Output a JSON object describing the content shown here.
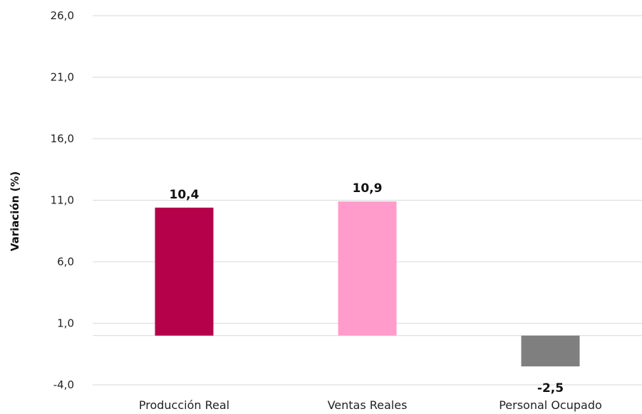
{
  "chart_data": {
    "type": "bar",
    "ylabel": "Variación (%)",
    "categories": [
      "Producción Real",
      "Ventas Reales",
      "Personal Ocupado"
    ],
    "values": [
      10.4,
      10.9,
      -2.5
    ],
    "value_labels": [
      "10,4",
      "10,9",
      "-2,5"
    ],
    "bar_colors": [
      "#b5004a",
      "#ff9ccc",
      "#7f7f7f"
    ],
    "yticks": [
      26.0,
      21.0,
      16.0,
      11.0,
      6.0,
      1.0,
      -4.0
    ],
    "ytick_labels": [
      "26,0",
      "21,0",
      "16,0",
      "11,0",
      "6,0",
      "1,0",
      "-4,0"
    ],
    "ylim": [
      -4,
      26
    ],
    "grid": true,
    "legend": "none"
  }
}
